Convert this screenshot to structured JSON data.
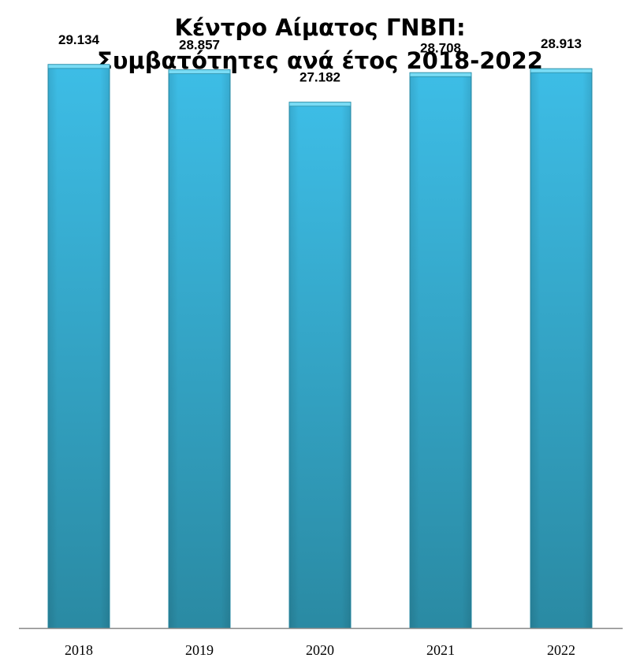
{
  "chart_data": {
    "type": "bar",
    "title": "Κέντρο Αίματος ΓΝΒΠ:",
    "subtitle": "Συμβατότητες ανά έτος 2018-2022",
    "categories": [
      "2018",
      "2019",
      "2020",
      "2021",
      "2022"
    ],
    "values": [
      29134,
      28857,
      27182,
      28708,
      28913
    ],
    "value_labels": [
      "29.134",
      "28.857",
      "27.182",
      "28.708",
      "28.913"
    ],
    "xlabel": "",
    "ylabel": "",
    "ylim": [
      0,
      31000
    ],
    "grid": false,
    "legend": "none",
    "colors": {
      "bar_top": "#3dbde6",
      "bar_bottom": "#2a8aa3",
      "bar_edge": "#2b8fa8",
      "bar_cap": "#7adcf5",
      "axis": "#888888"
    }
  }
}
